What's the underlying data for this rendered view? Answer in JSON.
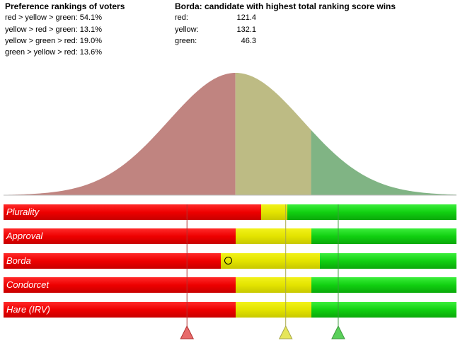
{
  "rankings": {
    "title": "Preference rankings of voters",
    "lines": [
      "red > yellow > green: 54.1%",
      "yellow > red > green: 13.1%",
      "yellow > green > red: 19.0%",
      "green > yellow > red: 13.6%"
    ]
  },
  "scores": {
    "title": "Borda: candidate with highest total ranking score wins",
    "rows": [
      {
        "label": "red:",
        "value": "121.4"
      },
      {
        "label": "yellow:",
        "value": "132.1"
      },
      {
        "label": "green:",
        "value": "46.3"
      }
    ]
  },
  "colors": {
    "red": "#ee0000",
    "yellow": "#e3e300",
    "green": "#11d011",
    "dist_red": "#c08480",
    "dist_yellow": "#bdbb84",
    "dist_green": "#80b484"
  },
  "methods": [
    {
      "name": "Plurality",
      "red": 0.568,
      "yellow": 0.058
    },
    {
      "name": "Approval",
      "red": 0.512,
      "yellow": 0.167
    },
    {
      "name": "Borda",
      "red": 0.479,
      "yellow": 0.22
    },
    {
      "name": "Condorcet",
      "red": 0.512,
      "yellow": 0.167
    },
    {
      "name": "Hare (IRV)",
      "red": 0.512,
      "yellow": 0.167
    }
  ],
  "distribution": {
    "red_until": 0.512,
    "yellow_until": 0.679
  },
  "candidates": [
    {
      "name": "red",
      "position": 0.405,
      "icon": "triangle-up"
    },
    {
      "name": "yellow",
      "position": 0.623,
      "icon": "triangle-up"
    },
    {
      "name": "green",
      "position": 0.739,
      "icon": "triangle-up"
    }
  ],
  "borda_marker": {
    "position": 0.497,
    "icon": "circle"
  }
}
